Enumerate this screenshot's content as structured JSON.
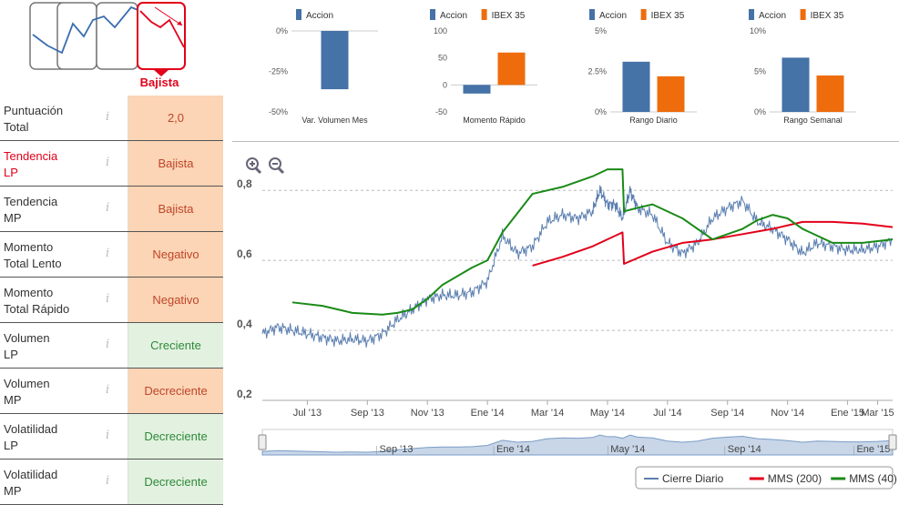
{
  "trend_widget": {
    "label": "Bajista"
  },
  "indicators": [
    {
      "label": "Puntuación\nTotal",
      "value": "2,0",
      "tone": "orange",
      "highlight": false
    },
    {
      "label": "Tendencia\nLP",
      "value": "Bajista",
      "tone": "orange",
      "highlight": true
    },
    {
      "label": "Tendencia\nMP",
      "value": "Bajista",
      "tone": "orange",
      "highlight": false
    },
    {
      "label": "Momento\nTotal Lento",
      "value": "Negativo",
      "tone": "orange",
      "highlight": false
    },
    {
      "label": "Momento\nTotal Rápido",
      "value": "Negativo",
      "tone": "orange",
      "highlight": false
    },
    {
      "label": "Volumen\nLP",
      "value": "Creciente",
      "tone": "green",
      "highlight": false
    },
    {
      "label": "Volumen\nMP",
      "value": "Decreciente",
      "tone": "orange",
      "highlight": false
    },
    {
      "label": "Volatilidad\nLP",
      "value": "Decreciente",
      "tone": "green",
      "highlight": false
    },
    {
      "label": "Volatilidad\nMP",
      "value": "Decreciente",
      "tone": "green",
      "highlight": false
    }
  ],
  "info_glyph": "i",
  "colors": {
    "accion": "#4572a7",
    "ibex": "#ee6c0c",
    "mms200": "#e2001a",
    "mms40": "#1a8a17",
    "close": "#5b7fb0",
    "bajista": "#e2001a"
  },
  "chart_data": [
    {
      "type": "bar",
      "title": "Var. Volumen Mes",
      "legend": [
        "Accion"
      ],
      "series": [
        {
          "name": "Accion",
          "values": [
            -36
          ]
        }
      ],
      "ylim": [
        -50,
        0
      ],
      "yticks": [
        0,
        -25,
        -50
      ],
      "ytick_labels": [
        "0%",
        "-25%",
        "-50%"
      ]
    },
    {
      "type": "bar",
      "title": "Momento Rápido",
      "legend": [
        "Accion",
        "IBEX 35"
      ],
      "series": [
        {
          "name": "Accion",
          "values": [
            -16
          ]
        },
        {
          "name": "IBEX 35",
          "values": [
            60
          ]
        }
      ],
      "ylim": [
        -50,
        100
      ],
      "yticks": [
        100,
        50,
        0,
        -50
      ],
      "ytick_labels": [
        "100",
        "50",
        "0",
        "-50"
      ]
    },
    {
      "type": "bar",
      "title": "Rango Diario",
      "legend": [
        "Accion",
        "IBEX 35"
      ],
      "series": [
        {
          "name": "Accion",
          "values": [
            3.1
          ]
        },
        {
          "name": "IBEX 35",
          "values": [
            2.2
          ]
        }
      ],
      "ylim": [
        0,
        5
      ],
      "yticks": [
        5,
        2.5,
        0
      ],
      "ytick_labels": [
        "5%",
        "2.5%",
        "0%"
      ]
    },
    {
      "type": "bar",
      "title": "Rango Semanal",
      "legend": [
        "Accion",
        "IBEX 35"
      ],
      "series": [
        {
          "name": "Accion",
          "values": [
            6.7
          ]
        },
        {
          "name": "IBEX 35",
          "values": [
            4.5
          ]
        }
      ],
      "ylim": [
        0,
        10
      ],
      "yticks": [
        10,
        5,
        0
      ],
      "ytick_labels": [
        "10%",
        "5%",
        "0%"
      ]
    },
    {
      "type": "line",
      "title": "",
      "ylim": [
        0.2,
        0.85
      ],
      "yticks": [
        0.2,
        0.4,
        0.6,
        0.8
      ],
      "ytick_labels": [
        "0,2",
        "0,4",
        "0,6",
        "0,8"
      ],
      "xlim": [
        0,
        21
      ],
      "x_ticks": [
        {
          "x": 1.5,
          "label": "Jul '13"
        },
        {
          "x": 3.5,
          "label": "Sep '13"
        },
        {
          "x": 5.5,
          "label": "Nov '13"
        },
        {
          "x": 7.5,
          "label": "Ene '14"
        },
        {
          "x": 9.5,
          "label": "Mar '14"
        },
        {
          "x": 11.5,
          "label": "May '14"
        },
        {
          "x": 13.5,
          "label": "Jul '14"
        },
        {
          "x": 15.5,
          "label": "Sep '14"
        },
        {
          "x": 17.5,
          "label": "Nov '14"
        },
        {
          "x": 19.5,
          "label": "Ene '15"
        },
        {
          "x": 20.5,
          "label": "Mar '15"
        }
      ],
      "series": [
        {
          "name": "Cierre Diario",
          "x": [
            0,
            0.5,
            1,
            1.5,
            2,
            2.5,
            3,
            3.5,
            4,
            4.5,
            5,
            5.5,
            6,
            6.5,
            7,
            7.5,
            8,
            8.5,
            9,
            9.5,
            10,
            10.5,
            11,
            11.25,
            11.5,
            11.75,
            12,
            12.25,
            12.5,
            13,
            13.5,
            14,
            14.5,
            15,
            15.5,
            16,
            16.5,
            17,
            17.5,
            18,
            18.5,
            19,
            19.5,
            20,
            20.5,
            21
          ],
          "values": [
            0.39,
            0.41,
            0.4,
            0.39,
            0.38,
            0.37,
            0.375,
            0.37,
            0.39,
            0.43,
            0.46,
            0.49,
            0.5,
            0.5,
            0.51,
            0.54,
            0.67,
            0.62,
            0.64,
            0.71,
            0.73,
            0.72,
            0.74,
            0.8,
            0.76,
            0.76,
            0.72,
            0.8,
            0.75,
            0.73,
            0.65,
            0.62,
            0.65,
            0.72,
            0.75,
            0.77,
            0.71,
            0.69,
            0.66,
            0.62,
            0.65,
            0.64,
            0.63,
            0.63,
            0.64,
            0.66
          ]
        },
        {
          "name": "MMS (200)",
          "x": [
            9,
            10,
            11,
            12,
            12.05,
            13,
            14,
            15,
            16,
            17,
            18,
            19,
            20,
            21
          ],
          "values": [
            0.585,
            0.61,
            0.64,
            0.68,
            0.59,
            0.625,
            0.65,
            0.66,
            0.675,
            0.69,
            0.71,
            0.71,
            0.705,
            0.695
          ]
        },
        {
          "name": "MMS (40)",
          "x": [
            1,
            2,
            3,
            4,
            4.5,
            5,
            5.5,
            6,
            7,
            7.5,
            8,
            9,
            10,
            11,
            11.5,
            12,
            12.05,
            12.5,
            13,
            14,
            15,
            16,
            16.5,
            17,
            17.5,
            18,
            19,
            20,
            21
          ],
          "values": [
            0.48,
            0.47,
            0.45,
            0.445,
            0.45,
            0.46,
            0.49,
            0.53,
            0.58,
            0.6,
            0.68,
            0.79,
            0.81,
            0.84,
            0.86,
            0.86,
            0.74,
            0.75,
            0.76,
            0.72,
            0.66,
            0.69,
            0.715,
            0.73,
            0.72,
            0.69,
            0.65,
            0.65,
            0.66
          ]
        }
      ],
      "legend": [
        "Cierre Diario",
        "MMS (200)",
        "MMS (40)"
      ],
      "navigator": {
        "labels": [
          "Sep '13",
          "Ene '14",
          "May '14",
          "Sep '14",
          "Ene '15"
        ]
      }
    }
  ]
}
